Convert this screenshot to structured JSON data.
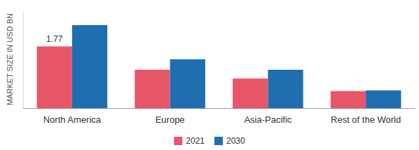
{
  "chart_data": {
    "type": "bar",
    "y_label": "MARKET SIZE IN USD BN",
    "categories": [
      "North America",
      "Europe",
      "Asia-Pacific",
      "Rest of the World"
    ],
    "series": [
      {
        "name": "2021",
        "color": "#e8566a",
        "values": [
          1.77,
          1.1,
          0.85,
          0.49
        ],
        "value_labels": [
          "1.77",
          null,
          null,
          null
        ]
      },
      {
        "name": "2030",
        "color": "#1f6fb0",
        "values": [
          2.38,
          1.4,
          1.1,
          0.51
        ]
      }
    ],
    "ylim": [
      0,
      2.8
    ],
    "grid": false,
    "legend": "bottom",
    "tick_labels": "x"
  }
}
